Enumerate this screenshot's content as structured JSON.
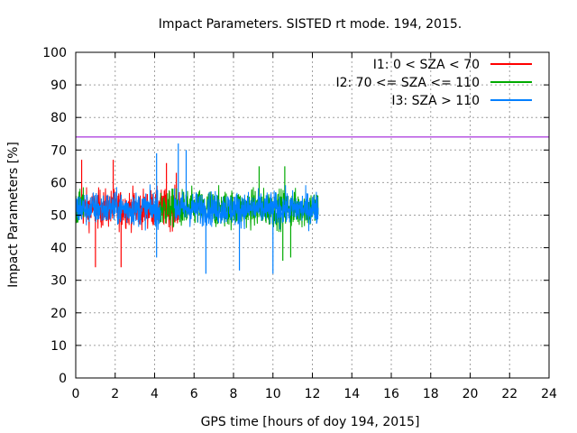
{
  "chart_data": {
    "type": "line",
    "title": "Impact Parameters. SISTED rt mode. 194, 2015.",
    "xlabel": "GPS time [hours of doy 194, 2015]",
    "ylabel": "Impact Parameters [%]",
    "xlim": [
      0,
      24
    ],
    "ylim": [
      0,
      100
    ],
    "xticks": [
      0,
      2,
      4,
      6,
      8,
      10,
      12,
      14,
      16,
      18,
      20,
      22,
      24
    ],
    "yticks": [
      0,
      10,
      20,
      30,
      40,
      50,
      60,
      70,
      80,
      90,
      100
    ],
    "grid": true,
    "legend_position": "top-right",
    "threshold": {
      "y": 74,
      "color": "#9400d3"
    },
    "series": [
      {
        "name": "I1: 0 < SZA < 70",
        "color": "#ff0000",
        "segments": [
          [
            0.2,
            4.4
          ],
          [
            4.4,
            5.4
          ]
        ],
        "mean": 52,
        "low": 43,
        "high": 61,
        "spikes": [
          [
            1.0,
            34
          ],
          [
            2.3,
            34
          ],
          [
            1.9,
            67
          ],
          [
            0.3,
            67
          ],
          [
            4.6,
            66
          ],
          [
            5.1,
            63
          ]
        ]
      },
      {
        "name": "I2: 70 <= SZA <= 110",
        "color": "#00aa00",
        "segments": [
          [
            0.0,
            0.4
          ],
          [
            4.2,
            5.5
          ],
          [
            5.5,
            12.3
          ]
        ],
        "mean": 52,
        "low": 43,
        "high": 61,
        "spikes": [
          [
            10.5,
            36
          ],
          [
            10.9,
            37
          ],
          [
            9.3,
            65
          ],
          [
            10.6,
            65
          ]
        ]
      },
      {
        "name": "I3: SZA > 110",
        "color": "#0080ff",
        "segments": [
          [
            0.0,
            4.3
          ],
          [
            5.0,
            12.3
          ]
        ],
        "mean": 52,
        "low": 44,
        "high": 60,
        "spikes": [
          [
            5.2,
            72
          ],
          [
            5.6,
            70
          ],
          [
            4.1,
            69
          ],
          [
            6.6,
            32
          ],
          [
            10.0,
            32
          ],
          [
            8.3,
            33
          ],
          [
            4.1,
            37
          ]
        ]
      }
    ]
  }
}
